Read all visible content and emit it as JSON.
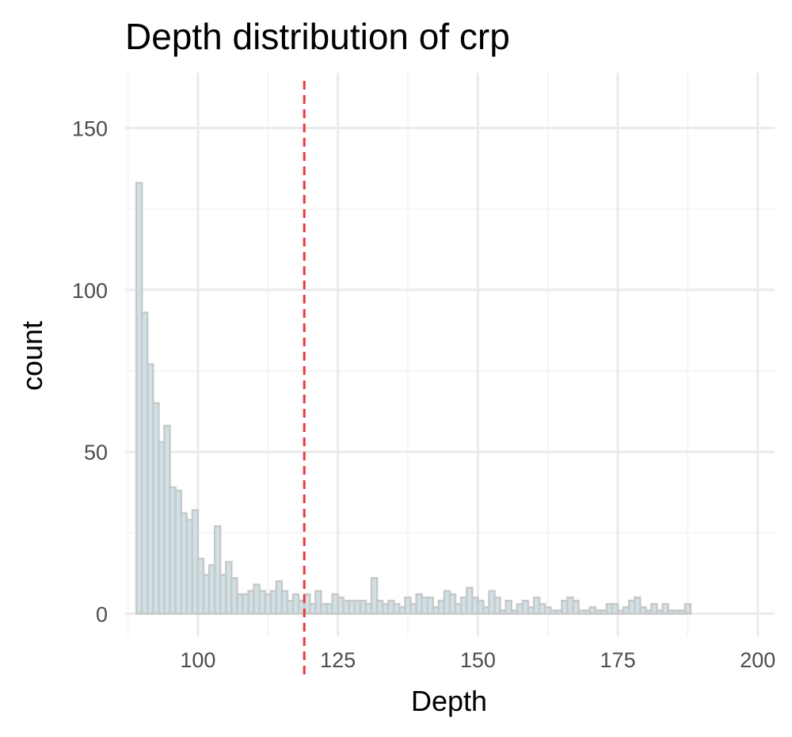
{
  "chart_data": {
    "type": "bar",
    "title": "Depth distribution of crp",
    "xlabel": "Depth",
    "ylabel": "count",
    "xlim": [
      87,
      203
    ],
    "ylim": [
      -7,
      167
    ],
    "xticks": [
      100,
      125,
      150,
      175,
      200
    ],
    "yticks": [
      0,
      50,
      100,
      150
    ],
    "grid": true,
    "legend": "none",
    "bin_width": 1,
    "bin_start": 89,
    "counts": [
      133,
      93,
      77,
      65,
      53,
      58,
      39,
      38,
      31,
      29,
      32,
      17,
      12,
      15,
      27,
      12,
      16,
      11,
      6,
      6,
      7,
      9,
      7,
      6,
      7,
      10,
      7,
      4,
      6,
      4,
      6,
      3,
      7,
      3,
      3,
      6,
      5,
      4,
      4,
      4,
      4,
      3,
      11,
      4,
      3,
      4,
      3,
      2,
      5,
      3,
      6,
      5,
      5,
      2,
      4,
      7,
      6,
      3,
      5,
      8,
      5,
      4,
      2,
      7,
      5,
      1,
      4,
      1,
      3,
      4,
      2,
      5,
      3,
      2,
      1,
      1,
      4,
      5,
      4,
      1,
      1,
      2,
      1,
      1,
      3,
      3,
      1,
      2,
      4,
      5,
      2,
      1,
      3,
      1,
      3,
      1,
      1,
      1,
      3,
      0
    ],
    "reference_line": {
      "x": 119,
      "style": "dashed"
    },
    "colors": {
      "bar_fill": "#cfe1e6",
      "bar_stroke": "#c8c8c8",
      "reference_line": "#e8383d",
      "grid_major": "#ebebeb",
      "grid_minor": "#f3f3f3"
    }
  }
}
